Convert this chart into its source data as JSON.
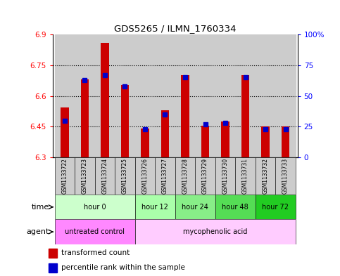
{
  "title": "GDS5265 / ILMN_1760334",
  "samples": [
    "GSM1133722",
    "GSM1133723",
    "GSM1133724",
    "GSM1133725",
    "GSM1133726",
    "GSM1133727",
    "GSM1133728",
    "GSM1133729",
    "GSM1133730",
    "GSM1133731",
    "GSM1133732",
    "GSM1133733"
  ],
  "red_values": [
    6.545,
    6.68,
    6.86,
    6.655,
    6.44,
    6.53,
    6.7,
    6.455,
    6.475,
    6.7,
    6.45,
    6.45
  ],
  "blue_percentiles": [
    30,
    63,
    67,
    58,
    23,
    35,
    65,
    27,
    28,
    65,
    23,
    23
  ],
  "ymin": 6.3,
  "ymax": 6.9,
  "yticks": [
    6.3,
    6.45,
    6.6,
    6.75,
    6.9
  ],
  "ytick_labels": [
    "6.3",
    "6.45",
    "6.6",
    "6.75",
    "6.9"
  ],
  "right_yticks": [
    0,
    25,
    50,
    75,
    100
  ],
  "right_ytick_labels": [
    "0",
    "25",
    "50",
    "75",
    "100%"
  ],
  "bar_color": "#cc0000",
  "blue_color": "#0000cc",
  "sample_bg": "#cccccc",
  "time_colors": [
    "#ccffcc",
    "#aaffaa",
    "#88ee88",
    "#55dd55",
    "#22cc22"
  ],
  "agent_color_1": "#ff88ff",
  "agent_color_2": "#ffccff",
  "time_groups": [
    {
      "label": "hour 0",
      "start": 0,
      "end": 3
    },
    {
      "label": "hour 12",
      "start": 4,
      "end": 5
    },
    {
      "label": "hour 24",
      "start": 6,
      "end": 7
    },
    {
      "label": "hour 48",
      "start": 8,
      "end": 9
    },
    {
      "label": "hour 72",
      "start": 10,
      "end": 11
    }
  ],
  "agent_groups": [
    {
      "label": "untreated control",
      "start": 0,
      "end": 3
    },
    {
      "label": "mycophenolic acid",
      "start": 4,
      "end": 11
    }
  ]
}
